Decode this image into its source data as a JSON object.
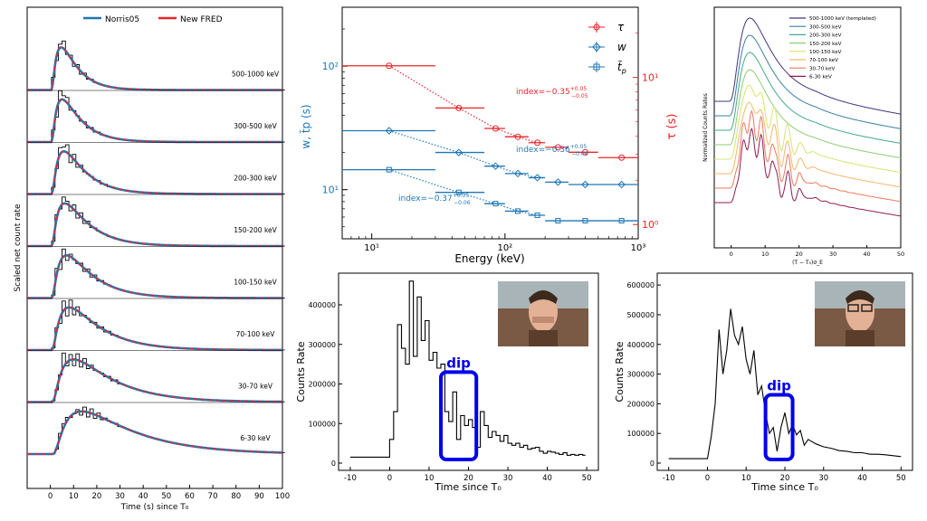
{
  "chart_data": [
    {
      "type": "line",
      "ylabel": "Scaled net count rate",
      "xlabel": "Time (s) since T₀",
      "xlim": [
        -10,
        100
      ],
      "xticks": [
        0,
        10,
        20,
        30,
        40,
        50,
        60,
        70,
        80,
        90,
        100
      ],
      "legend": {
        "placement": "top",
        "entries": [
          {
            "name": "Norris05",
            "color": "#1f77b4"
          },
          {
            "name": "New FRED",
            "color": "#e8262a"
          }
        ]
      },
      "bands": [
        {
          "label": "500-1000 keV",
          "peak_time": 6,
          "width": 6
        },
        {
          "label": "300-500 keV",
          "peak_time": 6,
          "width": 7
        },
        {
          "label": "200-300 keV",
          "peak_time": 7,
          "width": 8
        },
        {
          "label": "150-200 keV",
          "peak_time": 7,
          "width": 9
        },
        {
          "label": "100-150 keV",
          "peak_time": 8,
          "width": 10
        },
        {
          "label": "70-100 keV",
          "peak_time": 9,
          "width": 12
        },
        {
          "label": "30-70 keV",
          "peak_time": 11,
          "width": 15
        },
        {
          "label": "6-30 keV",
          "peak_time": 15,
          "width": 20
        }
      ]
    },
    {
      "type": "scatter",
      "xlabel": "Energy (keV)",
      "ylabel_left": "w, t̃p (s)",
      "ylabel_right": "τ (s)",
      "xscale": "log",
      "yscale": "log",
      "xlim": [
        6,
        1000
      ],
      "ylim_left": [
        4,
        300
      ],
      "ylim_right": [
        0.8,
        30
      ],
      "xtick_labels": [
        "10¹",
        "10²",
        "10³"
      ],
      "ytick_labels_left": [
        "10¹",
        "10²"
      ],
      "ytick_labels_right": [
        "10⁰",
        "10¹"
      ],
      "legend": {
        "placement": "top-right",
        "entries": [
          "τ",
          "w",
          "t̃p"
        ]
      },
      "series": [
        {
          "name": "τ",
          "axis": "right",
          "color": "#e8262a",
          "x": [
            13.5,
            45,
            85,
            125,
            175,
            250,
            400,
            750
          ],
          "xerr": [
            [
              6,
              30
            ],
            [
              30,
              70
            ],
            [
              70,
              100
            ],
            [
              100,
              150
            ],
            [
              150,
              200
            ],
            [
              200,
              300
            ],
            [
              300,
              500
            ],
            [
              500,
              1000
            ]
          ],
          "y": [
            12.0,
            6.2,
            4.5,
            3.95,
            3.6,
            3.35,
            3.1,
            2.85
          ],
          "annotation": "index=−0.35",
          "ann_sup": "+0.05",
          "ann_sub": "−0.05"
        },
        {
          "name": "w",
          "axis": "left",
          "color": "#1f77b4",
          "x": [
            13.5,
            45,
            85,
            125,
            175,
            250,
            400,
            750
          ],
          "xerr": [
            [
              6,
              30
            ],
            [
              30,
              70
            ],
            [
              70,
              100
            ],
            [
              100,
              150
            ],
            [
              150,
              200
            ],
            [
              200,
              300
            ],
            [
              300,
              500
            ],
            [
              500,
              1000
            ]
          ],
          "y": [
            30,
            20,
            15.5,
            13.5,
            12.5,
            11.5,
            11.0,
            11.0
          ],
          "annotation": "index=−0.36",
          "ann_sup": "+0.05",
          "ann_sub": "−0.06"
        },
        {
          "name": "t̃p",
          "axis": "left",
          "color": "#1f77b4",
          "x": [
            13.5,
            45,
            85,
            125,
            175,
            250,
            400,
            750
          ],
          "xerr": [
            [
              6,
              30
            ],
            [
              30,
              70
            ],
            [
              70,
              100
            ],
            [
              100,
              150
            ],
            [
              150,
              200
            ],
            [
              200,
              300
            ],
            [
              300,
              500
            ],
            [
              500,
              1000
            ]
          ],
          "y": [
            14.5,
            9.5,
            7.7,
            6.7,
            6.2,
            5.6,
            5.6,
            5.6
          ],
          "annotation": "index=−0.37",
          "ann_sup": "+0.05",
          "ann_sub": "−0.06"
        }
      ]
    },
    {
      "type": "line",
      "ylabel": "Normalized Counts Rates",
      "xlabel": "(T − T₀)σ_E",
      "xlim": [
        -5,
        50
      ],
      "xticks": [
        0,
        10,
        20,
        30,
        40,
        50
      ],
      "legend": {
        "placement": "top-right"
      },
      "series": [
        {
          "name": "500-1000 keV (templated)",
          "color": "#44337f"
        },
        {
          "name": "300-500 keV",
          "color": "#3a7fa3"
        },
        {
          "name": "200-300 keV",
          "color": "#45a88a"
        },
        {
          "name": "150-200 keV",
          "color": "#8fce72"
        },
        {
          "name": "100-150 keV",
          "color": "#d8e36f"
        },
        {
          "name": "70-100 keV",
          "color": "#f4b76a"
        },
        {
          "name": "30-70 keV",
          "color": "#ec7a5b"
        },
        {
          "name": "6-30 keV",
          "color": "#8e1e4d"
        }
      ]
    },
    {
      "type": "line",
      "ylabel": "Counts Rate",
      "xlabel": "Time since T₀",
      "xlim": [
        -10,
        50
      ],
      "ylim": [
        0,
        480000
      ],
      "xticks": [
        -10,
        0,
        10,
        20,
        30,
        40,
        50
      ],
      "yticks": [
        0,
        100000,
        200000,
        300000,
        400000
      ],
      "annotation": {
        "label": "dip",
        "x_range": [
          13,
          22
        ]
      },
      "x": [
        -10,
        -9,
        -8,
        -7,
        -6,
        -5,
        -4,
        -3,
        -2,
        -1,
        0,
        1,
        2,
        3,
        4,
        5,
        6,
        7,
        8,
        9,
        10,
        11,
        12,
        13,
        14,
        15,
        16,
        17,
        18,
        19,
        20,
        21,
        22,
        23,
        24,
        25,
        26,
        27,
        28,
        29,
        30,
        31,
        32,
        33,
        34,
        35,
        36,
        37,
        38,
        39,
        40,
        41,
        42,
        43,
        44,
        45,
        46,
        47,
        48,
        49
      ],
      "y": [
        15000,
        15000,
        15000,
        15000,
        15000,
        15000,
        15000,
        15000,
        15000,
        15000,
        60000,
        130000,
        350000,
        290000,
        250000,
        460000,
        270000,
        420000,
        310000,
        360000,
        260000,
        280000,
        240000,
        250000,
        130000,
        105000,
        180000,
        60000,
        120000,
        95000,
        110000,
        90000,
        40000,
        130000,
        95000,
        65000,
        80000,
        70000,
        55000,
        70000,
        50000,
        45000,
        50000,
        40000,
        45000,
        35000,
        38000,
        40000,
        30000,
        25000,
        30000,
        28000,
        25000,
        22000,
        26000,
        20000,
        22000,
        20000,
        22000,
        20000
      ]
    },
    {
      "type": "line",
      "ylabel": "Counts Rate",
      "xlabel": "Time since T₀",
      "xlim": [
        -10,
        50
      ],
      "ylim": [
        0,
        640000
      ],
      "xticks": [
        -10,
        0,
        10,
        20,
        30,
        40,
        50
      ],
      "yticks": [
        0,
        100000,
        200000,
        300000,
        400000,
        500000,
        600000
      ],
      "annotation": {
        "label": "dip",
        "x_range": [
          15,
          22
        ]
      },
      "x": [
        -10,
        -8,
        -6,
        -4,
        -2,
        0,
        1,
        2,
        3,
        4,
        5,
        6,
        7,
        8,
        9,
        10,
        11,
        12,
        13,
        14,
        15,
        16,
        17,
        18,
        19,
        20,
        21,
        22,
        23,
        24,
        25,
        26,
        28,
        30,
        32,
        34,
        36,
        38,
        40,
        42,
        44,
        46,
        48,
        50
      ],
      "y": [
        15000,
        15000,
        15000,
        15000,
        15000,
        15000,
        90000,
        200000,
        450000,
        300000,
        380000,
        520000,
        430000,
        400000,
        460000,
        350000,
        300000,
        380000,
        230000,
        260000,
        170000,
        100000,
        120000,
        40000,
        120000,
        170000,
        100000,
        130000,
        95000,
        110000,
        60000,
        80000,
        65000,
        55000,
        50000,
        42000,
        40000,
        35000,
        35000,
        30000,
        30000,
        28000,
        25000,
        22000
      ]
    }
  ],
  "labels": {
    "p1_legend_norris": "Norris05",
    "p1_legend_fred": "New FRED",
    "tau_sym": "τ",
    "w_sym": "w",
    "tp_sym": "t̃",
    "tp_sub": "p",
    "dip": "dip"
  }
}
